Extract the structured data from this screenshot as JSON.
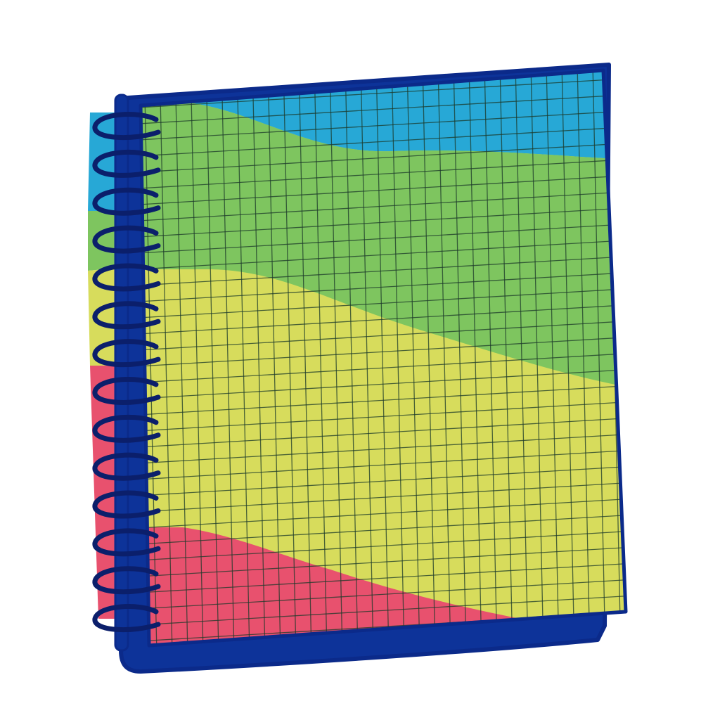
{
  "image": {
    "subject": "spiral-notebook-icon",
    "colors": {
      "background": "#ffffff",
      "outline": "#0b2a8a",
      "cover": "#0d3399",
      "blue_band": "#27a8d6",
      "green_band": "#7ec55f",
      "yellow_band": "#d7dc5c",
      "pink_band": "#e8516e",
      "grid_line": "#1c3a2a",
      "spiral_ring": "#0b1f6b"
    },
    "spiral_ring_count": 14
  }
}
